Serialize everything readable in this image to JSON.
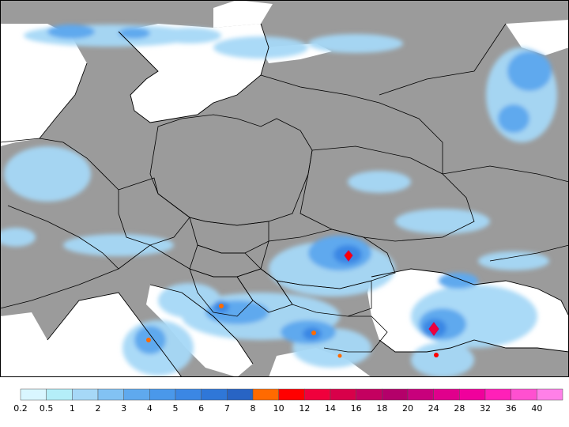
{
  "map": {
    "land_color": "#9b9b9b",
    "sea_color": "#ffffff",
    "border_color": "#000000"
  },
  "legend": {
    "thresholds": [
      "0.2",
      "0.5",
      "1",
      "2",
      "3",
      "4",
      "5",
      "6",
      "7",
      "8",
      "10",
      "12",
      "14",
      "16",
      "18",
      "20",
      "24",
      "28",
      "32",
      "36",
      "40"
    ],
    "colors": [
      "#d9f6ff",
      "#b4eef8",
      "#a6d8f7",
      "#82c2f3",
      "#5fa9ee",
      "#4a98ea",
      "#3b87e4",
      "#2f77d8",
      "#2864c4",
      "#ff6a00",
      "#ff0000",
      "#f0003c",
      "#d8004a",
      "#c40060",
      "#b4006a",
      "#c8007c",
      "#e0008c",
      "#f0009c",
      "#ff20b8",
      "#ff50d0",
      "#ff80e8"
    ]
  }
}
